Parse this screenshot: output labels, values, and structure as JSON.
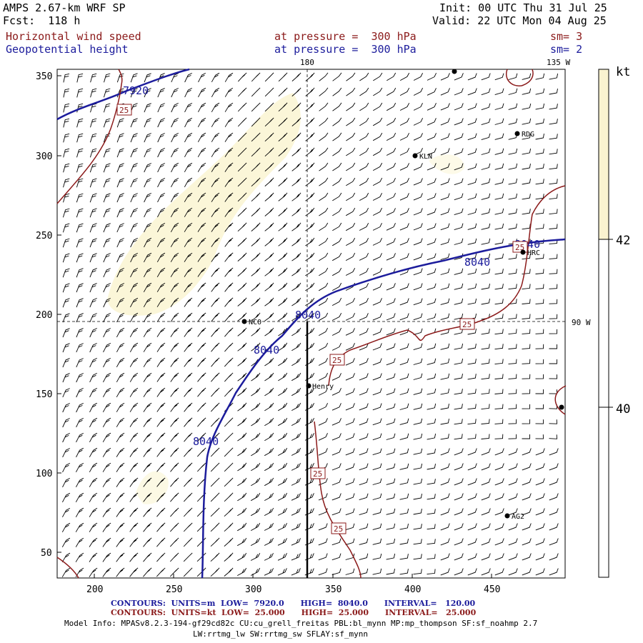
{
  "header": {
    "model": "AMPS 2.67-km WRF SP",
    "fcst": "Fcst:  118 h",
    "init": "Init: 00 UTC Thu 31 Jul 25",
    "valid": "Valid: 22 UTC Mon 04 Aug 25",
    "field1": "Horizontal wind speed",
    "field2": "Geopotential height",
    "pressure1": "at pressure =  300 hPa",
    "pressure2": "at pressure =  300 hPa",
    "sm1": "sm= 3",
    "sm2": "sm= 2"
  },
  "map": {
    "lon_labels": {
      "top_180": "180",
      "top_135w": "135 W",
      "right_90w": "90 W"
    },
    "x_ticks": [
      "200",
      "250",
      "300",
      "350",
      "400",
      "450"
    ],
    "y_ticks": [
      "350",
      "300",
      "250",
      "200",
      "150",
      "100",
      "50"
    ],
    "stations": [
      {
        "name": "RDG"
      },
      {
        "name": "KLN"
      },
      {
        "name": "HRC"
      },
      {
        "name": "NCO"
      },
      {
        "name": "Henry"
      },
      {
        "name": "AG2"
      }
    ],
    "height_contour_labels": [
      "7920",
      "8040",
      "8040",
      "8040",
      "8040",
      "8040"
    ],
    "speed_contour_labels": [
      "25",
      "25",
      "25",
      "25",
      "25",
      "25"
    ],
    "colors": {
      "height": "#1c1c9c",
      "speed": "#8b1a1a",
      "shade": "#fbf6d8"
    }
  },
  "colorbar": {
    "unit": "kt",
    "labels": [
      "42",
      "40"
    ],
    "colors": [
      "#faf3d0",
      "#ffffff"
    ]
  },
  "footer": {
    "contours1": "CONTOURS:  UNITS=m  LOW=  7920.0      HIGH=  8040.0      INTERVAL=   120.00",
    "contours2": "CONTOURS:  UNITS=kt  LOW=  25.000      HIGH=  25.000      INTERVAL=   25.000",
    "model_info": "Model Info: MPASv8.2.3-194-gf29cd82c CU:cu_grell_freitas PBL:bl_mynn MP:mp_thompson SF:sf_noahmp 2.7",
    "model_info2": "LW:rrtmg_lw SW:rrtmg_sw SFLAY:sf_mynn"
  }
}
